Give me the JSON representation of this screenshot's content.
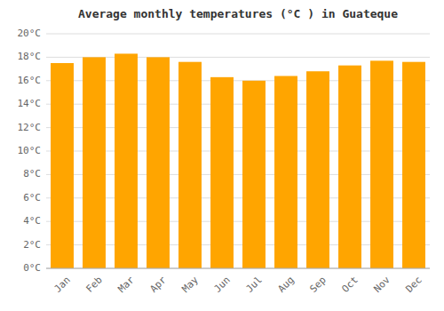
{
  "chart_data": {
    "type": "bar",
    "title": "Average monthly temperatures (°C ) in Guateque",
    "categories": [
      "Jan",
      "Feb",
      "Mar",
      "Apr",
      "May",
      "Jun",
      "Jul",
      "Aug",
      "Sep",
      "Oct",
      "Nov",
      "Dec"
    ],
    "values": [
      17.5,
      18.0,
      18.3,
      18.0,
      17.6,
      16.3,
      16.0,
      16.4,
      16.8,
      17.3,
      17.7,
      17.6
    ],
    "color": "#FFA500",
    "ylim": [
      0,
      20
    ],
    "yticks": [
      {
        "value": 0,
        "label": "0°C"
      },
      {
        "value": 2,
        "label": "2°C"
      },
      {
        "value": 4,
        "label": "4°C"
      },
      {
        "value": 6,
        "label": "6°C"
      },
      {
        "value": 8,
        "label": "8°C"
      },
      {
        "value": 10,
        "label": "10°C"
      },
      {
        "value": 12,
        "label": "12°C"
      },
      {
        "value": 14,
        "label": "14°C"
      },
      {
        "value": 16,
        "label": "16°C"
      },
      {
        "value": 18,
        "label": "18°C"
      },
      {
        "value": 20,
        "label": "20°C"
      }
    ],
    "grid": true
  }
}
